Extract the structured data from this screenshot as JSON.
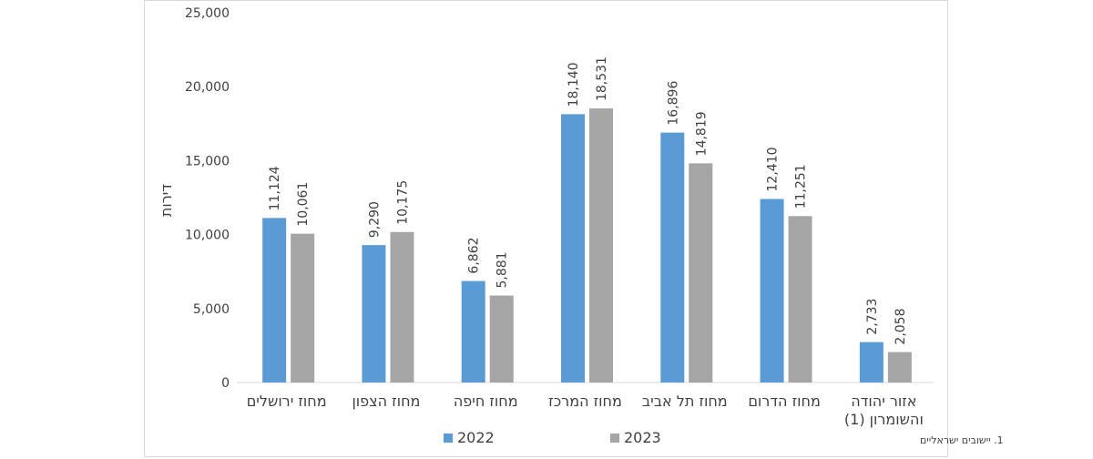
{
  "chart_data": {
    "type": "bar",
    "ylabel": "דירות",
    "ylim": [
      0,
      25000
    ],
    "yticks": [
      0,
      5000,
      10000,
      15000,
      20000,
      25000
    ],
    "categories": [
      [
        "מחוז ירושלים"
      ],
      [
        "מחוז הצפון"
      ],
      [
        "מחוז חיפה"
      ],
      [
        "מחוז המרכז"
      ],
      [
        "מחוז תל אביב"
      ],
      [
        "מחוז הדרום"
      ],
      [
        "אזור יהודה",
        "והשומרון (1)"
      ]
    ],
    "series": [
      {
        "name": "2022",
        "color": "#5b9bd5",
        "values": [
          11124,
          9290,
          6862,
          18140,
          16896,
          12410,
          2733
        ]
      },
      {
        "name": "2023",
        "color": "#a5a5a5",
        "values": [
          10061,
          10175,
          5881,
          18531,
          14819,
          11251,
          2058
        ]
      }
    ],
    "gridlines": false,
    "legend_position": "bottom",
    "footnote": "1. יישובים ישראליים"
  }
}
